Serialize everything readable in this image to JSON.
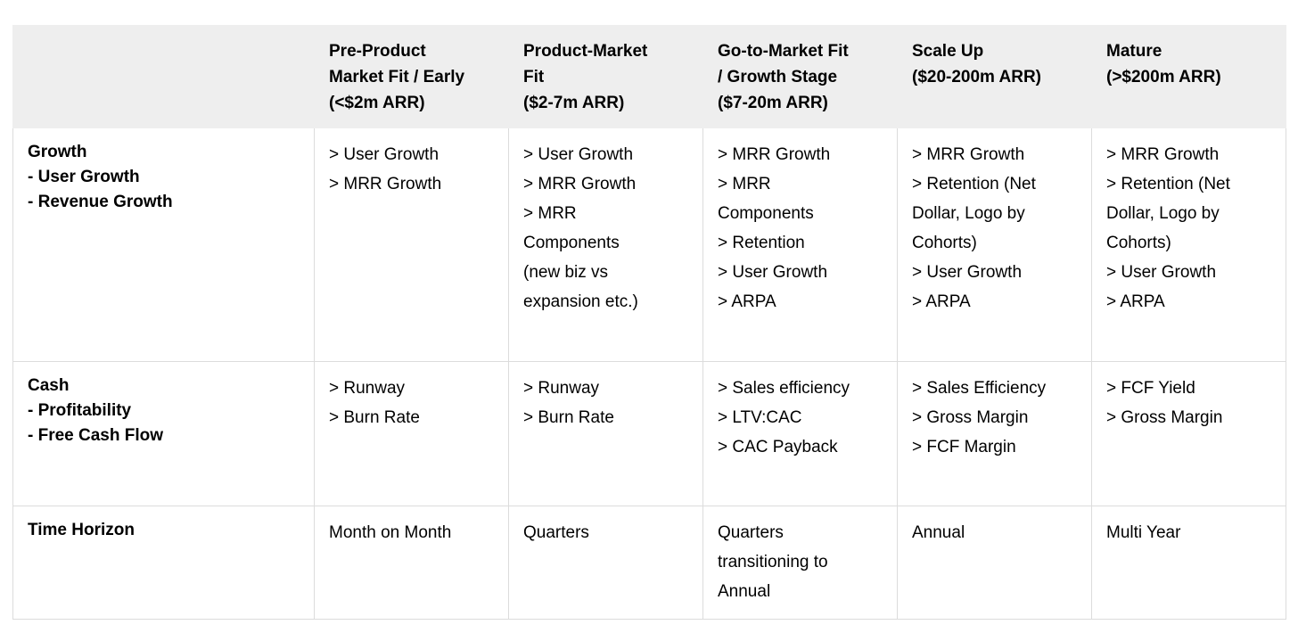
{
  "colors": {
    "header_background": "#eeeeee",
    "border": "#dcdcdc",
    "text": "#000000"
  },
  "table": {
    "headers": [
      "",
      "Pre-Product\nMarket Fit / Early\n(<$2m ARR)",
      "Product-Market\nFit\n($2-7m ARR)",
      "Go-to-Market Fit\n/ Growth Stage\n($7-20m ARR)",
      "Scale Up\n($20-200m ARR)",
      "Mature\n(>$200m ARR)"
    ],
    "rows": [
      {
        "label": "Growth\n- User Growth\n- Revenue Growth",
        "cells": [
          "> User Growth\n> MRR Growth",
          "> User Growth\n> MRR Growth\n> MRR\nComponents\n(new biz vs\nexpansion etc.)",
          "> MRR Growth\n> MRR\nComponents\n> Retention\n> User Growth\n> ARPA",
          "> MRR Growth\n> Retention (Net\nDollar, Logo by\nCohorts)\n> User Growth\n> ARPA",
          "> MRR Growth\n> Retention (Net\nDollar, Logo by\nCohorts)\n> User Growth\n> ARPA"
        ]
      },
      {
        "label": "Cash\n- Profitability\n- Free Cash Flow",
        "cells": [
          "> Runway\n> Burn Rate",
          "> Runway\n> Burn Rate",
          "> Sales efficiency\n> LTV:CAC\n> CAC Payback",
          "> Sales Efficiency\n> Gross Margin\n> FCF Margin",
          "> FCF Yield\n> Gross Margin"
        ]
      },
      {
        "label": "Time Horizon",
        "cells": [
          "Month on Month",
          "Quarters",
          "Quarters\ntransitioning to\nAnnual",
          "Annual",
          "Multi Year"
        ]
      }
    ]
  }
}
